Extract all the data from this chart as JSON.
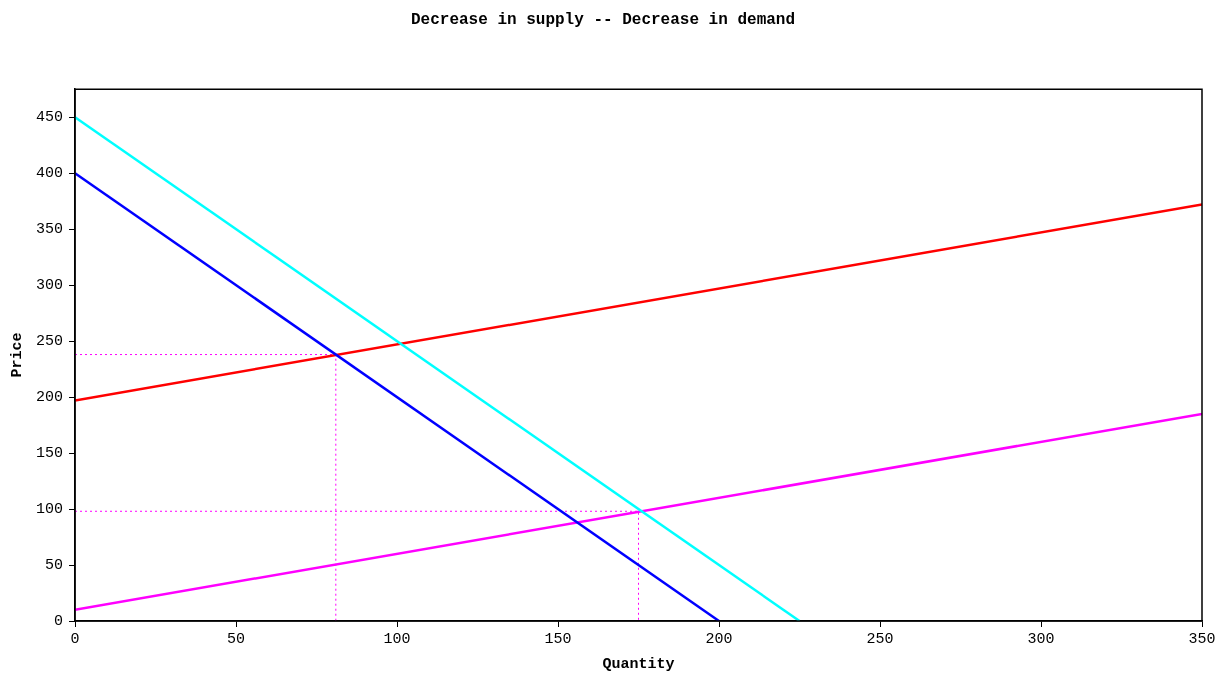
{
  "chart_data": {
    "type": "line",
    "title": "Decrease in supply -- Decrease in demand",
    "xlabel": "Quantity",
    "ylabel": "Price",
    "xlim": [
      0,
      350
    ],
    "xticks": [
      0,
      50,
      100,
      150,
      200,
      250,
      300,
      350
    ],
    "ylim": [
      0,
      475
    ],
    "yticks": [
      0,
      50,
      100,
      150,
      200,
      250,
      300,
      350,
      400,
      450
    ],
    "grid": false,
    "legend": false,
    "marker": "none",
    "line_style": "solid",
    "series": [
      {
        "color": "#00ffff",
        "x": [
          0,
          225
        ],
        "values": [
          450,
          0
        ]
      },
      {
        "color": "#0000ff",
        "x": [
          0,
          200
        ],
        "values": [
          400,
          0
        ]
      },
      {
        "color": "#ff0000",
        "x": [
          0,
          350
        ],
        "values": [
          197,
          372
        ]
      },
      {
        "color": "#ff00ff",
        "x": [
          0,
          350
        ],
        "values": [
          10,
          185
        ]
      },
      {
        "color": "#ff00ff",
        "line_style": "dotted",
        "x": [
          0,
          81,
          81
        ],
        "values": [
          238,
          238,
          0
        ]
      },
      {
        "color": "#ff00ff",
        "line_style": "dotted",
        "x": [
          0,
          175,
          175
        ],
        "values": [
          98,
          98,
          0
        ]
      }
    ]
  }
}
